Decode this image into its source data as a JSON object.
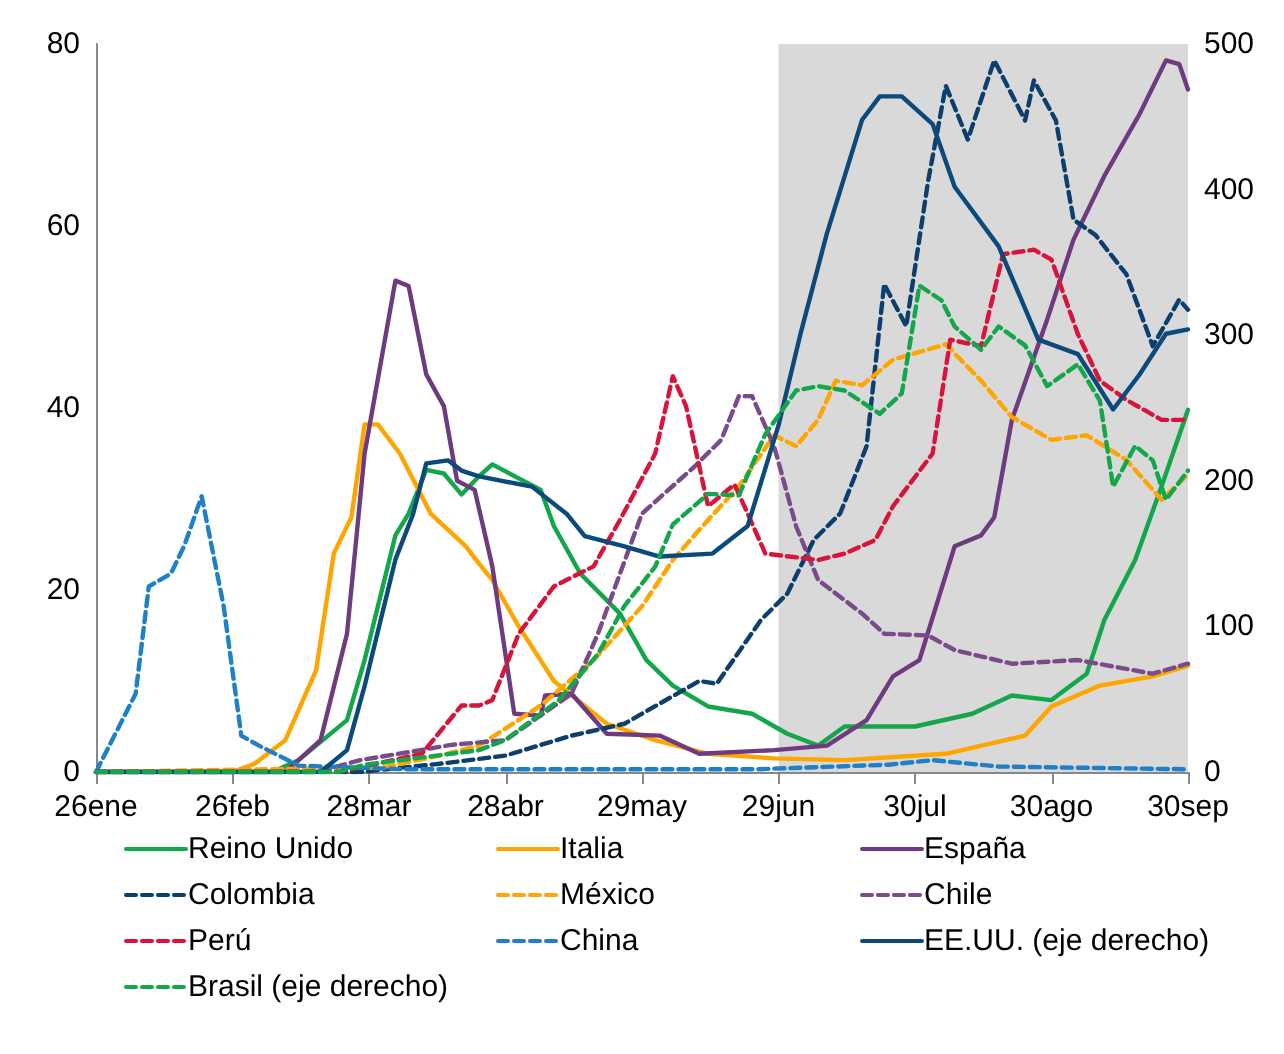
{
  "chart_data": {
    "type": "line",
    "xlim": [
      "--01-26",
      "--09-30"
    ],
    "xticks": [
      {
        "value": "--01-26",
        "label": "26ene"
      },
      {
        "value": "--02-26",
        "label": "26feb"
      },
      {
        "value": "--03-28",
        "label": "28mar"
      },
      {
        "value": "--04-28",
        "label": "28abr"
      },
      {
        "value": "--05-29",
        "label": "29may"
      },
      {
        "value": "--06-29",
        "label": "29jun"
      },
      {
        "value": "--07-30",
        "label": "30jul"
      },
      {
        "value": "--08-30",
        "label": "30ago"
      },
      {
        "value": "--09-30",
        "label": "30sep"
      }
    ],
    "ylim": [
      0,
      80
    ],
    "yticks": [
      0,
      20,
      40,
      60,
      80
    ],
    "y2lim": [
      0,
      500
    ],
    "y2ticks": [
      0,
      100,
      200,
      300,
      400,
      500
    ],
    "grid": false,
    "legend": "bottom",
    "marker": "none",
    "bands": [
      {
        "axis": "x",
        "from": "--06-29",
        "to": "--09-30",
        "color": "#d9d9d9"
      }
    ],
    "series": [
      {
        "name": "Reino Unido",
        "color": "#14a64a",
        "line_style": "solid",
        "x": [
          "--01-26",
          "--03-06",
          "--03-12",
          "--03-23",
          "--03-27",
          "--04-03",
          "--04-06",
          "--04-10",
          "--04-14",
          "--04-18",
          "--04-22",
          "--04-25",
          "--05-06",
          "--05-09",
          "--05-15",
          "--05-24",
          "--05-30",
          "--06-05",
          "--06-13",
          "--06-23",
          "--07-01",
          "--07-08",
          "--07-14",
          "--07-30",
          "--08-12",
          "--08-21",
          "--08-30",
          "--09-07",
          "--09-11",
          "--09-18",
          "--09-24",
          "--09-30"
        ],
        "values": [
          0,
          0,
          1.3,
          5.7,
          12.3,
          26,
          28.4,
          33.2,
          32.8,
          30.5,
          32.5,
          33.8,
          31,
          27,
          21.8,
          17.4,
          12.3,
          9.5,
          7.2,
          6.4,
          4.2,
          2.9,
          5,
          5,
          6.4,
          8.4,
          7.9,
          10.8,
          16.7,
          23.3,
          31.4,
          39.8
        ]
      },
      {
        "name": "Italia",
        "color": "#ffa500",
        "line_style": "solid",
        "x": [
          "--01-26",
          "--02-26",
          "--03-02",
          "--03-09",
          "--03-16",
          "--03-20",
          "--03-24",
          "--03-27",
          "--03-30",
          "--04-04",
          "--04-11",
          "--04-19",
          "--04-22",
          "--04-25",
          "--05-01",
          "--05-09",
          "--05-21",
          "--06-01",
          "--06-13",
          "--06-28",
          "--07-14",
          "--08-06",
          "--08-24",
          "--08-30",
          "--09-10",
          "--09-22",
          "--09-30"
        ],
        "values": [
          0,
          0,
          0.9,
          3.5,
          11.2,
          24,
          28,
          38.2,
          38.2,
          35,
          28.4,
          24.8,
          22.9,
          21.1,
          16,
          10,
          5.3,
          3.5,
          2,
          1.5,
          1.3,
          2,
          4,
          7.2,
          9.5,
          10.5,
          11.7
        ]
      },
      {
        "name": "España",
        "color": "#6e3b80",
        "line_style": "solid",
        "x": [
          "--01-26",
          "--03-09",
          "--03-17",
          "--03-23",
          "--03-27",
          "--04-03",
          "--04-06",
          "--04-10",
          "--04-14",
          "--04-17",
          "--04-21",
          "--04-25",
          "--04-30",
          "--05-06",
          "--05-07",
          "--05-13",
          "--05-21",
          "--06-02",
          "--06-11",
          "--06-28",
          "--07-10",
          "--07-19",
          "--07-25",
          "--07-31",
          "--08-08",
          "--08-14",
          "--08-17",
          "--08-21",
          "--08-29",
          "--09-04",
          "--09-11",
          "--09-19",
          "--09-25",
          "--09-28",
          "--09-30"
        ],
        "values": [
          0,
          0,
          3.5,
          15.2,
          35,
          54,
          53.4,
          43.7,
          40.2,
          32,
          31,
          22.6,
          6.4,
          6.2,
          8.4,
          8.6,
          4.2,
          4,
          2,
          2.4,
          2.9,
          5.7,
          10.5,
          12.3,
          24.8,
          26,
          28,
          38.7,
          49.7,
          58.5,
          65.5,
          72.3,
          78.2,
          77.8,
          75
        ]
      },
      {
        "name": "Colombia",
        "color": "#0d3f6e",
        "line_style": "dashed",
        "x": [
          "--01-26",
          "--03-26",
          "--04-13",
          "--04-28",
          "--05-13",
          "--05-25",
          "--06-11",
          "--06-15",
          "--06-25",
          "--07-01",
          "--07-07",
          "--07-13",
          "--07-19",
          "--07-23",
          "--07-28",
          "--08-02",
          "--08-06",
          "--08-11",
          "--08-17",
          "--08-24",
          "--08-26",
          "--08-31",
          "--09-04",
          "--09-09",
          "--09-16",
          "--09-22",
          "--09-28",
          "--09-30"
        ],
        "values": [
          0,
          0,
          0.9,
          1.8,
          4,
          5.3,
          10,
          9.7,
          16.7,
          19.6,
          25.5,
          28.4,
          35.8,
          53.6,
          49,
          65,
          75.4,
          69.5,
          78.2,
          71.6,
          76,
          71.6,
          60.7,
          59,
          54.7,
          46.8,
          51.9,
          50.8
        ]
      },
      {
        "name": "México",
        "color": "#ffa500",
        "line_style": "dashed",
        "x": [
          "--01-26",
          "--03-31",
          "--04-13",
          "--04-22",
          "--05-06",
          "--05-18",
          "--05-29",
          "--06-05",
          "--06-13",
          "--06-20",
          "--06-28",
          "--07-03",
          "--07-08",
          "--07-12",
          "--07-18",
          "--07-25",
          "--08-06",
          "--08-14",
          "--08-21",
          "--08-30",
          "--09-07",
          "--09-16",
          "--09-24",
          "--09-30"
        ],
        "values": [
          0,
          0.5,
          1.8,
          2.9,
          7.3,
          12.3,
          18.2,
          23.3,
          27.7,
          31.4,
          37,
          35.8,
          38.7,
          43,
          42.5,
          45.3,
          47,
          43,
          39,
          36.5,
          37,
          34.3,
          29.9,
          32.7
        ]
      },
      {
        "name": "Chile",
        "color": "#7a4b8a",
        "line_style": "dashed",
        "x": [
          "--01-26",
          "--03-16",
          "--03-26",
          "--04-16",
          "--04-28",
          "--05-13",
          "--05-19",
          "--05-29",
          "--06-10",
          "--06-16",
          "--06-20",
          "--06-23",
          "--06-28",
          "--07-03",
          "--07-08",
          "--07-18",
          "--07-23",
          "--08-02",
          "--08-08",
          "--08-21",
          "--09-05",
          "--09-22",
          "--09-30"
        ],
        "values": [
          0,
          0,
          1.3,
          3,
          3.5,
          8.6,
          15.2,
          28.4,
          33.6,
          36.5,
          41.3,
          41.3,
          35.8,
          27,
          21.1,
          17.4,
          15.2,
          15,
          13.4,
          11.9,
          12.3,
          10.8,
          11.9
        ]
      },
      {
        "name": "Perú",
        "color": "#d9143a",
        "line_style": "dashed",
        "x": [
          "--01-26",
          "--03-21",
          "--04-09",
          "--04-18",
          "--04-22",
          "--04-25",
          "--05-01",
          "--05-09",
          "--05-18",
          "--05-24",
          "--06-01",
          "--06-05",
          "--06-08",
          "--06-13",
          "--06-19",
          "--06-22",
          "--06-26",
          "--07-08",
          "--07-14",
          "--07-21",
          "--07-25",
          "--08-03",
          "--08-07",
          "--08-14",
          "--08-19",
          "--08-26",
          "--08-30",
          "--09-05",
          "--09-10",
          "--09-16",
          "--09-24",
          "--09-30"
        ],
        "values": [
          0,
          0,
          2,
          7.3,
          7.3,
          7.9,
          15.2,
          20.4,
          22.6,
          27.7,
          35,
          43.5,
          40.2,
          29.2,
          31.6,
          28.4,
          24,
          23.3,
          24,
          25.5,
          29.2,
          35,
          47.5,
          46.8,
          56.9,
          57.4,
          56.3,
          48.1,
          43,
          40.9,
          38.7,
          38.7
        ]
      },
      {
        "name": "China",
        "color": "#1f80c8",
        "line_style": "dashed",
        "x": [
          "--01-26",
          "--02-04",
          "--02-07",
          "--02-12",
          "--02-15",
          "--02-19",
          "--02-24",
          "--02-28",
          "--03-03",
          "--03-12",
          "--04-05",
          "--06-24",
          "--07-24",
          "--08-03",
          "--08-18",
          "--09-30"
        ],
        "values": [
          0,
          8.6,
          20.4,
          21.8,
          24.8,
          30.3,
          18.2,
          4,
          2.9,
          0.7,
          0.3,
          0.3,
          0.8,
          1.3,
          0.6,
          0.3
        ]
      },
      {
        "name": "EE.UU. (eje derecho)",
        "color": "#0b4a7a",
        "line_style": "solid",
        "axis": "y2",
        "x": [
          "--01-26",
          "--03-17",
          "--03-23",
          "--03-27",
          "--04-03",
          "--04-07",
          "--04-10",
          "--04-15",
          "--04-18",
          "--04-22",
          "--05-04",
          "--05-12",
          "--05-16",
          "--05-25",
          "--06-02",
          "--06-14",
          "--06-22",
          "--06-29",
          "--07-04",
          "--07-10",
          "--07-18",
          "--07-22",
          "--07-27",
          "--08-03",
          "--08-08",
          "--08-18",
          "--08-27",
          "--09-05",
          "--09-13",
          "--09-19",
          "--09-25",
          "--09-30"
        ],
        "values": [
          0,
          0,
          15,
          59,
          146,
          177,
          212,
          214,
          207,
          203,
          196,
          177,
          162,
          155,
          148,
          150,
          169,
          238,
          301,
          370,
          448,
          464,
          464,
          445,
          402,
          361,
          297,
          287,
          249,
          273,
          301,
          304
        ]
      },
      {
        "name": "Brasil (eje derecho)",
        "color": "#14a64a",
        "line_style": "dashed",
        "axis": "y2",
        "x": [
          "--01-26",
          "--03-21",
          "--03-27",
          "--04-22",
          "--04-28",
          "--05-10",
          "--05-19",
          "--05-25",
          "--06-01",
          "--06-05",
          "--06-13",
          "--06-20",
          "--06-26",
          "--07-03",
          "--07-08",
          "--07-14",
          "--07-22",
          "--07-27",
          "--07-31",
          "--08-05",
          "--08-08",
          "--08-14",
          "--08-18",
          "--08-24",
          "--08-29",
          "--09-05",
          "--09-10",
          "--09-13",
          "--09-18",
          "--09-22",
          "--09-25",
          "--09-30"
        ],
        "values": [
          0,
          0,
          5,
          15,
          22,
          49,
          81,
          114,
          141,
          170,
          191,
          190,
          232,
          262,
          265,
          262,
          246,
          260,
          334,
          324,
          306,
          290,
          306,
          293,
          265,
          280,
          255,
          196,
          224,
          214,
          187,
          207
        ]
      }
    ]
  }
}
